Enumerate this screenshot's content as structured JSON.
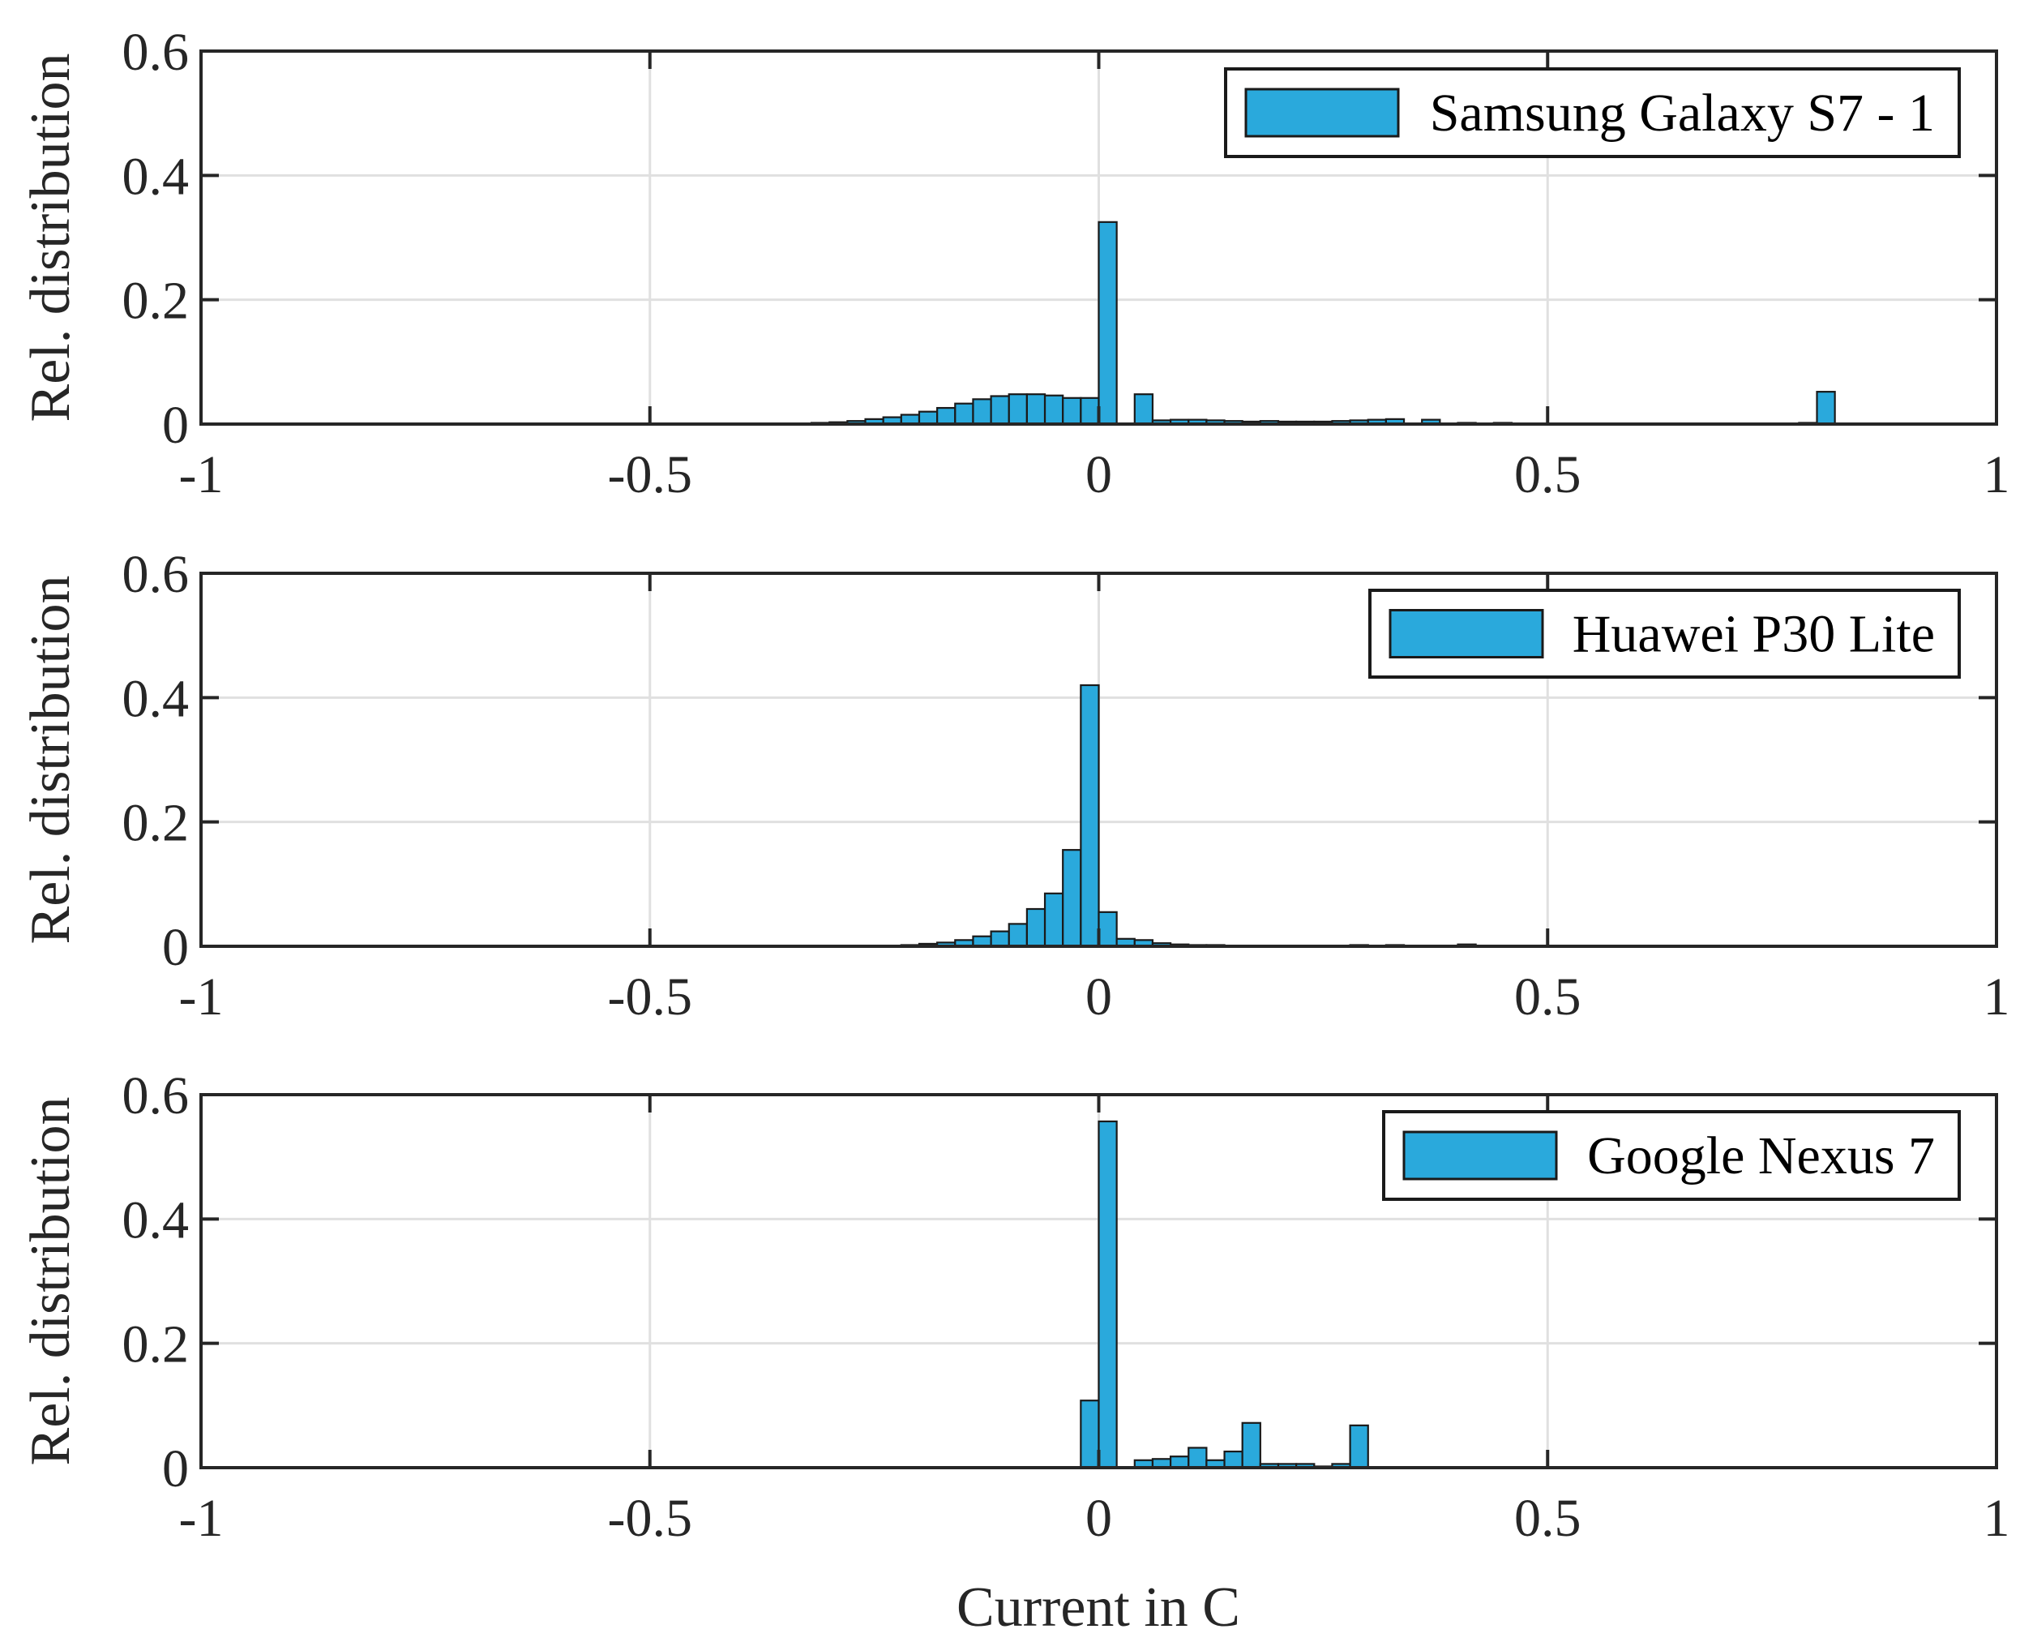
{
  "figure": {
    "xlabel": "Current in C"
  },
  "colors": {
    "bar_fill": "#2aa9dc",
    "bar_edge": "#1a1a1a",
    "grid": "#e0e0e0",
    "axis": "#262626"
  },
  "chart_data": [
    {
      "type": "bar",
      "legend": "Samsung Galaxy S7 - 1",
      "ylabel": "Rel. distribution",
      "xlim": [
        -1,
        1
      ],
      "ylim": [
        0,
        0.6
      ],
      "xticks": [
        -1,
        -0.5,
        0,
        0.5,
        1
      ],
      "xtick_labels": [
        "-1",
        "-0.5",
        "0",
        "0.5",
        "1"
      ],
      "yticks": [
        0,
        0.2,
        0.4,
        0.6
      ],
      "ytick_labels": [
        "0",
        "0.2",
        "0.4",
        "0.6"
      ],
      "bin_width": 0.02,
      "grid": true,
      "legend_position": "top-right",
      "bin_centers": [
        -0.33,
        -0.31,
        -0.29,
        -0.27,
        -0.25,
        -0.23,
        -0.21,
        -0.19,
        -0.17,
        -0.15,
        -0.13,
        -0.11,
        -0.09,
        -0.07,
        -0.05,
        -0.03,
        -0.01,
        0.01,
        0.05,
        0.07,
        0.09,
        0.11,
        0.13,
        0.15,
        0.17,
        0.19,
        0.21,
        0.23,
        0.25,
        0.27,
        0.29,
        0.31,
        0.33,
        0.37,
        0.41,
        0.45,
        0.53,
        0.61,
        0.69,
        0.77,
        0.79,
        0.81
      ],
      "values": [
        0.001,
        0.002,
        0.003,
        0.005,
        0.008,
        0.011,
        0.015,
        0.02,
        0.026,
        0.033,
        0.04,
        0.045,
        0.048,
        0.048,
        0.046,
        0.042,
        0.042,
        0.325,
        0.048,
        0.006,
        0.007,
        0.007,
        0.006,
        0.005,
        0.004,
        0.005,
        0.004,
        0.004,
        0.004,
        0.005,
        0.006,
        0.007,
        0.008,
        0.007,
        0.002,
        0.002,
        0.001,
        0.001,
        0.001,
        0.001,
        0.002,
        0.052
      ]
    },
    {
      "type": "bar",
      "legend": "Huawei P30 Lite",
      "ylabel": "Rel. distribution",
      "xlim": [
        -1,
        1
      ],
      "ylim": [
        0,
        0.6
      ],
      "xticks": [
        -1,
        -0.5,
        0,
        0.5,
        1
      ],
      "xtick_labels": [
        "-1",
        "-0.5",
        "0",
        "0.5",
        "1"
      ],
      "yticks": [
        0,
        0.2,
        0.4,
        0.6
      ],
      "ytick_labels": [
        "0",
        "0.2",
        "0.4",
        "0.6"
      ],
      "bin_width": 0.02,
      "grid": true,
      "legend_position": "top-right",
      "bin_centers": [
        -0.21,
        -0.19,
        -0.17,
        -0.15,
        -0.13,
        -0.11,
        -0.09,
        -0.07,
        -0.05,
        -0.03,
        -0.01,
        0.01,
        0.03,
        0.05,
        0.07,
        0.09,
        0.11,
        0.13,
        0.15,
        0.29,
        0.33,
        0.41,
        0.67
      ],
      "values": [
        0.002,
        0.004,
        0.006,
        0.01,
        0.016,
        0.024,
        0.036,
        0.06,
        0.085,
        0.155,
        0.42,
        0.055,
        0.012,
        0.01,
        0.005,
        0.003,
        0.002,
        0.002,
        0.001,
        0.002,
        0.002,
        0.003,
        0.001
      ]
    },
    {
      "type": "bar",
      "legend": "Google Nexus 7",
      "ylabel": "Rel. distribution",
      "xlim": [
        -1,
        1
      ],
      "ylim": [
        0,
        0.6
      ],
      "xticks": [
        -1,
        -0.5,
        0,
        0.5,
        1
      ],
      "xtick_labels": [
        "-1",
        "-0.5",
        "0",
        "0.5",
        "1"
      ],
      "yticks": [
        0,
        0.2,
        0.4,
        0.6
      ],
      "ytick_labels": [
        "0",
        "0.2",
        "0.4",
        "0.6"
      ],
      "bin_width": 0.02,
      "grid": true,
      "legend_position": "top-right",
      "bin_centers": [
        -0.01,
        0.01,
        0.05,
        0.07,
        0.09,
        0.11,
        0.13,
        0.15,
        0.17,
        0.19,
        0.21,
        0.23,
        0.25,
        0.27,
        0.29
      ],
      "values": [
        0.108,
        0.557,
        0.012,
        0.014,
        0.018,
        0.032,
        0.012,
        0.026,
        0.072,
        0.006,
        0.006,
        0.006,
        0.002,
        0.006,
        0.068
      ]
    }
  ]
}
